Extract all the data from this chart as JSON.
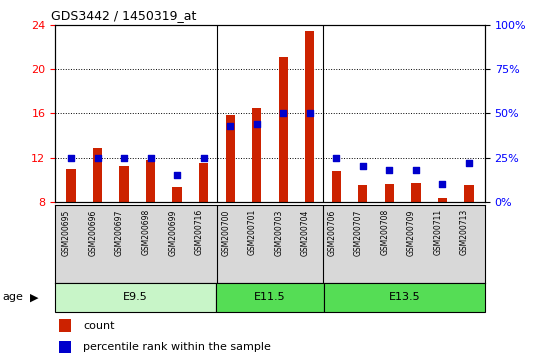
{
  "title": "GDS3442 / 1450319_at",
  "samples": [
    "GSM200695",
    "GSM200696",
    "GSM200697",
    "GSM200698",
    "GSM200699",
    "GSM200716",
    "GSM200700",
    "GSM200701",
    "GSM200703",
    "GSM200704",
    "GSM200706",
    "GSM200707",
    "GSM200708",
    "GSM200709",
    "GSM200711",
    "GSM200713"
  ],
  "count_values": [
    11.0,
    12.9,
    11.2,
    11.8,
    9.3,
    11.5,
    15.8,
    16.5,
    21.1,
    23.4,
    10.8,
    9.5,
    9.6,
    9.7,
    8.3,
    9.5
  ],
  "percentile_values": [
    25,
    25,
    25,
    25,
    15,
    25,
    43,
    44,
    50,
    50,
    25,
    20,
    18,
    18,
    10,
    22
  ],
  "groups": [
    {
      "label": "E9.5",
      "start": 0,
      "end": 6,
      "color": "#c8f5c8"
    },
    {
      "label": "E11.5",
      "start": 6,
      "end": 10,
      "color": "#55dd55"
    },
    {
      "label": "E13.5",
      "start": 10,
      "end": 16,
      "color": "#55dd55"
    }
  ],
  "group_dividers": [
    6,
    10
  ],
  "ylim_left": [
    8,
    24
  ],
  "ylim_right": [
    0,
    100
  ],
  "yticks_left": [
    8,
    12,
    16,
    20,
    24
  ],
  "yticks_right": [
    0,
    25,
    50,
    75,
    100
  ],
  "bar_color": "#cc2200",
  "dot_color": "#0000cc",
  "plot_bg": "#ffffff",
  "xtick_bg": "#d8d8d8",
  "legend_count_label": "count",
  "legend_pct_label": "percentile rank within the sample",
  "age_label": "age",
  "bar_width": 0.35
}
